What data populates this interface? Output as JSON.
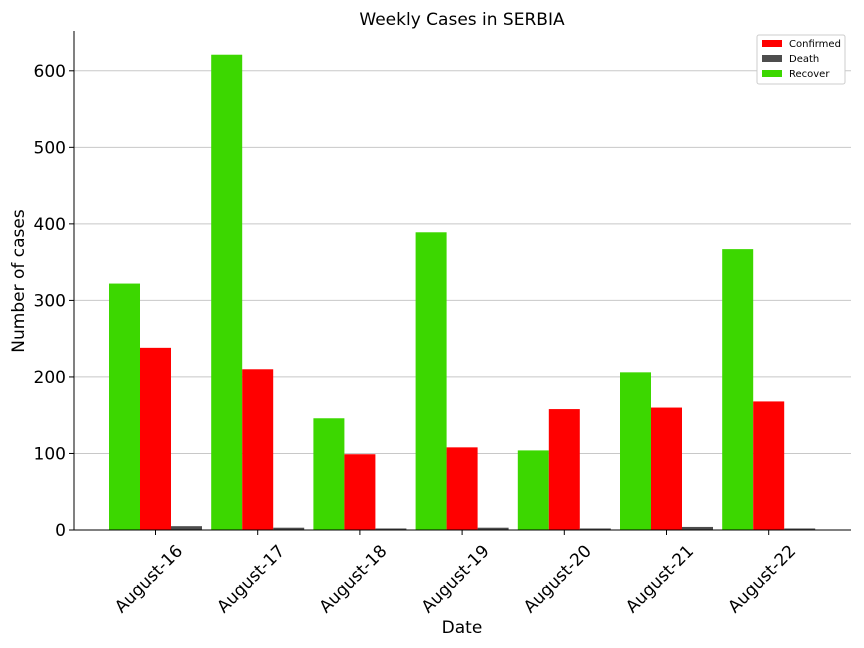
{
  "chart_data": {
    "type": "bar",
    "title": "Weekly Cases in SERBIA",
    "xlabel": "Date",
    "ylabel": "Number of cases",
    "categories": [
      "August-16",
      "August-17",
      "August-18",
      "August-19",
      "August-20",
      "August-21",
      "August-22"
    ],
    "series": [
      {
        "name": "Recover",
        "color": "#3cd700",
        "values": [
          322,
          621,
          146,
          389,
          104,
          206,
          367
        ]
      },
      {
        "name": "Confirmed",
        "color": "#ff0000",
        "values": [
          238,
          210,
          99,
          108,
          158,
          160,
          168
        ]
      },
      {
        "name": "Death",
        "color": "#4d4d4d",
        "values": [
          5,
          3,
          2,
          3,
          2,
          4,
          2
        ]
      }
    ],
    "legend_order": [
      "Confirmed",
      "Death",
      "Recover"
    ],
    "yticks": [
      0,
      100,
      200,
      300,
      400,
      500,
      600
    ],
    "ylim": [
      0,
      652
    ],
    "grid": "y",
    "legend_position": "top-right"
  }
}
